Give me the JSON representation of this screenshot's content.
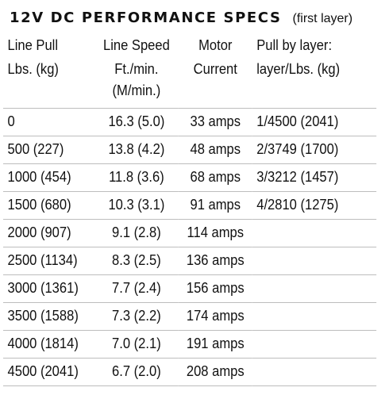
{
  "title": "12V DC PERFORMANCE SPECS",
  "subtitle": "(first layer)",
  "headers": {
    "line_pull": "Line Pull",
    "line_pull_unit": "Lbs. (kg)",
    "line_speed": "Line Speed",
    "line_speed_unit": "Ft./min.",
    "line_speed_unit2": "(M/min.)",
    "motor": "Motor",
    "motor_unit": "Current",
    "pull_by_layer": "Pull by layer:",
    "pull_by_layer_unit": "layer/Lbs. (kg)"
  },
  "rows": [
    {
      "pull": "0",
      "speed": "16.3 (5.0)",
      "current": "33 amps",
      "layer": "1/4500 (2041)"
    },
    {
      "pull": "500 (227)",
      "speed": "13.8 (4.2)",
      "current": "48 amps",
      "layer": "2/3749 (1700)"
    },
    {
      "pull": "1000 (454)",
      "speed": "11.8 (3.6)",
      "current": "68 amps",
      "layer": "3/3212 (1457)"
    },
    {
      "pull": "1500 (680)",
      "speed": "10.3 (3.1)",
      "current": "91 amps",
      "layer": "4/2810 (1275)"
    },
    {
      "pull": "2000 (907)",
      "speed": "9.1 (2.8)",
      "current": "114 amps",
      "layer": ""
    },
    {
      "pull": "2500 (1134)",
      "speed": "8.3 (2.5)",
      "current": "136 amps",
      "layer": ""
    },
    {
      "pull": "3000 (1361)",
      "speed": "7.7 (2.4)",
      "current": "156 amps",
      "layer": ""
    },
    {
      "pull": "3500 (1588)",
      "speed": "7.3 (2.2)",
      "current": "174 amps",
      "layer": ""
    },
    {
      "pull": "4000 (1814)",
      "speed": "7.0 (2.1)",
      "current": "191 amps",
      "layer": ""
    },
    {
      "pull": "4500 (2041)",
      "speed": "6.7 (2.0)",
      "current": "208 amps",
      "layer": ""
    }
  ]
}
